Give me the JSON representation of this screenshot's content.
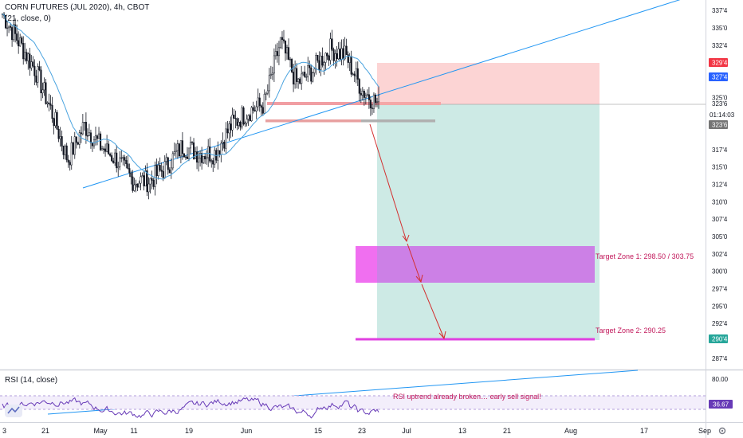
{
  "header": {
    "title": "CORN FUTURES (JUL 2020), 4h, CBOT",
    "indicator": "(21, close, 0)",
    "rsi_label": "RSI (14, close)"
  },
  "price_axis": {
    "labels": [
      "337'4",
      "335'0",
      "332'4",
      "325'0",
      "317'4",
      "315'0",
      "312'4",
      "310'0",
      "307'4",
      "305'0",
      "302'4",
      "300'0",
      "297'4",
      "295'0",
      "292'4",
      "287'4"
    ],
    "tags": {
      "upper_box": "329'4",
      "last_price": "327'4",
      "entry": "323'6",
      "countdown": "01:14:03",
      "entry_dark": "323'6",
      "target2": "290'4"
    }
  },
  "rsi_axis": {
    "labels": [
      "80.00"
    ],
    "value_tag": "36.67"
  },
  "time_axis": {
    "labels": [
      "3",
      "21",
      "May",
      "11",
      "19",
      "Jun",
      "15",
      "23",
      "Jul",
      "13",
      "21",
      "Aug",
      "17",
      "Sep"
    ]
  },
  "annotations": {
    "target1": "Target Zone 1: 298.50 / 303.75",
    "target2": "Target Zone 2: 290.25",
    "rsi_note": "RSI uptrend already broken… early sell signal!"
  },
  "colors": {
    "candle": "#131722",
    "ma": "#4aa3df",
    "trendline": "#2196f3",
    "stop_zone": "#fcd4d4",
    "profit_zone": "#cdeae5",
    "target_zone": "#cc80e6",
    "rsi": "#673ab7",
    "arrow": "#d32f2f",
    "price_tag": "#f23645",
    "blue_tag": "#2962ff",
    "teal_tag": "#26a69a"
  },
  "chart_data": [
    {
      "type": "candlestick",
      "title": "CORN FUTURES (JUL 2020), 4h, CBOT",
      "x_ticks": [
        "3",
        "21",
        "May",
        "11",
        "19",
        "Jun",
        "15",
        "23",
        "Jul",
        "13",
        "21",
        "Aug",
        "17",
        "Sep"
      ],
      "ylim": [
        286,
        339
      ],
      "y_ticks": [
        337.5,
        335,
        332.5,
        325,
        317.5,
        315,
        312.5,
        310,
        307.5,
        305,
        302.5,
        300,
        297.5,
        295,
        292.5,
        287.5
      ],
      "close_path": [
        {
          "x": "3",
          "y": 337
        },
        {
          "x": "5",
          "y": 333
        },
        {
          "x": "10",
          "y": 329
        },
        {
          "x": "16",
          "y": 323
        },
        {
          "x": "21",
          "y": 316
        },
        {
          "x": "24",
          "y": 321
        },
        {
          "x": "28",
          "y": 318
        },
        {
          "x": "May",
          "y": 316
        },
        {
          "x": "May 5",
          "y": 313
        },
        {
          "x": "11",
          "y": 313
        },
        {
          "x": "15",
          "y": 315
        },
        {
          "x": "19",
          "y": 318
        },
        {
          "x": "22",
          "y": 317
        },
        {
          "x": "26",
          "y": 317
        },
        {
          "x": "29",
          "y": 321
        },
        {
          "x": "Jun",
          "y": 323
        },
        {
          "x": "Jun 5",
          "y": 324
        },
        {
          "x": "9",
          "y": 333
        },
        {
          "x": "12",
          "y": 327
        },
        {
          "x": "15",
          "y": 329
        },
        {
          "x": "18",
          "y": 332
        },
        {
          "x": "21",
          "y": 331
        },
        {
          "x": "23",
          "y": 326
        },
        {
          "x": "25",
          "y": 324
        }
      ],
      "moving_average": {
        "length": 21
      },
      "trendline": {
        "from": {
          "x": "21",
          "y": 312
        },
        "slope": "rising"
      },
      "position": {
        "type": "short",
        "entry": 323.75,
        "stop": 329.5,
        "target_zones": [
          {
            "name": "Target Zone 1",
            "low": 298.5,
            "high": 303.75
          },
          {
            "name": "Target Zone 2",
            "low": 290.25,
            "high": 290.25
          }
        ]
      },
      "last_price": 327.5
    },
    {
      "type": "line",
      "title": "RSI (14, close)",
      "ylim": [
        25,
        85
      ],
      "y_ticks": [
        80
      ],
      "last_value": 36.67,
      "annotation": "RSI uptrend already broken… early sell signal!"
    }
  ]
}
